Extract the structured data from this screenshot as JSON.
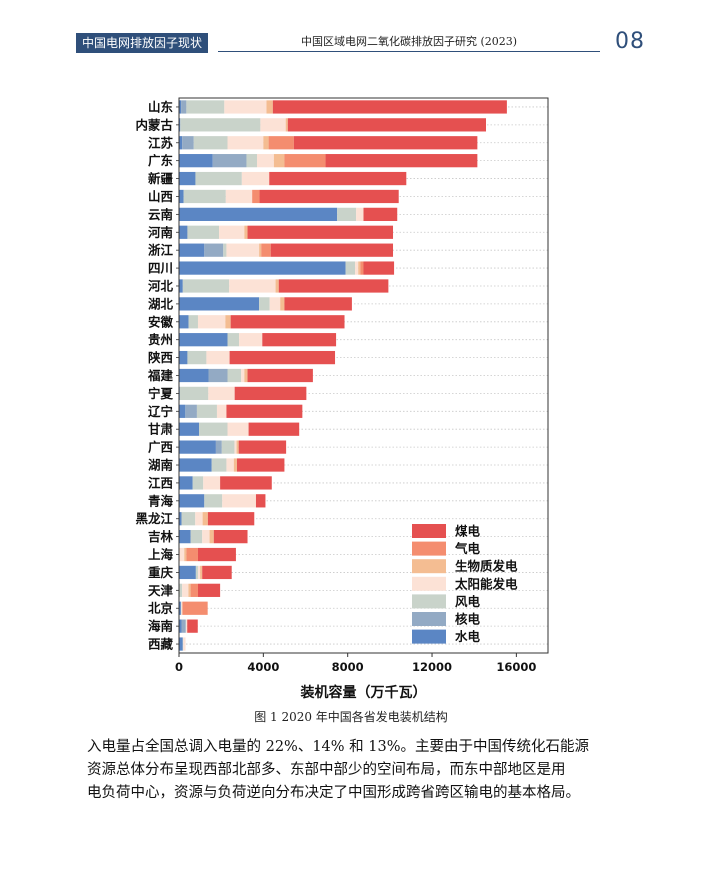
{
  "header": {
    "section_tag": "中国电网排放因子现状",
    "report_title": "中国区域电网二氧化碳排放因子研究 (2023)",
    "page_number": "08"
  },
  "figure": {
    "caption": "图 1 2020 年中国各省发电装机结构"
  },
  "body_text": {
    "lines": [
      "入电量占全国总调入电量的 22%、14% 和 13%。主要由于中国传统化石能源",
      "资源总体分布呈现西部北部多、东部中部少的空间布局，而东中部地区是用",
      "电负荷中心，资源与负荷逆向分布决定了中国形成跨省跨区输电的基本格局。"
    ]
  },
  "chart_data": {
    "type": "bar",
    "orientation": "horizontal",
    "stacked": true,
    "xlabel": "装机容量（万千瓦）",
    "ylabel": "",
    "title": "",
    "xlim": [
      0,
      17500
    ],
    "xticks": [
      0,
      4000,
      8000,
      12000,
      16000
    ],
    "xtick_labels": [
      "0",
      "4000",
      "8000",
      "12000",
      "16000"
    ],
    "grid": "horizontal dotted",
    "legend_position": "bottom-right",
    "categories": [
      "山东",
      "内蒙古",
      "江苏",
      "广东",
      "新疆",
      "山西",
      "云南",
      "河南",
      "浙江",
      "四川",
      "河北",
      "湖北",
      "安徽",
      "贵州",
      "陕西",
      "福建",
      "宁夏",
      "辽宁",
      "甘肃",
      "广西",
      "湖南",
      "江西",
      "青海",
      "黑龙江",
      "吉林",
      "上海",
      "重庆",
      "天津",
      "北京",
      "海南",
      "西藏"
    ],
    "series": [
      {
        "name": "水电",
        "color": "#5b86c4",
        "values": [
          100,
          60,
          150,
          1600,
          780,
          220,
          7500,
          400,
          1200,
          7900,
          180,
          3800,
          450,
          2300,
          400,
          1400,
          40,
          300,
          950,
          1750,
          1550,
          650,
          1200,
          120,
          550,
          0,
          800,
          0,
          90,
          120,
          180
        ]
      },
      {
        "name": "核电",
        "color": "#93aac4",
        "values": [
          250,
          0,
          550,
          1600,
          0,
          0,
          0,
          0,
          900,
          0,
          0,
          0,
          0,
          0,
          0,
          900,
          0,
          550,
          0,
          280,
          0,
          0,
          0,
          0,
          0,
          0,
          0,
          0,
          0,
          200,
          0
        ]
      },
      {
        "name": "风电",
        "color": "#c9d3ca",
        "values": [
          1800,
          3800,
          1600,
          500,
          2200,
          2000,
          900,
          1500,
          150,
          450,
          2200,
          500,
          450,
          550,
          900,
          650,
          1350,
          950,
          1350,
          600,
          700,
          500,
          850,
          650,
          550,
          0,
          100,
          150,
          20,
          20,
          20
        ]
      },
      {
        "name": "太阳能发电",
        "color": "#fce2d6",
        "values": [
          2000,
          1200,
          1700,
          800,
          1300,
          1250,
          350,
          1200,
          1550,
          150,
          2200,
          500,
          1300,
          1100,
          1100,
          150,
          1250,
          450,
          1000,
          100,
          350,
          800,
          1600,
          350,
          350,
          250,
          100,
          300,
          50,
          50,
          110
        ]
      },
      {
        "name": "生物质发电",
        "color": "#f4bd92",
        "values": [
          300,
          100,
          250,
          500,
          0,
          0,
          0,
          150,
          100,
          100,
          150,
          200,
          250,
          0,
          0,
          150,
          0,
          0,
          0,
          100,
          150,
          0,
          0,
          250,
          200,
          100,
          100,
          100,
          0,
          0,
          0
        ]
      },
      {
        "name": "气电",
        "color": "#f48d6f",
        "values": [
          0,
          0,
          1200,
          1950,
          0,
          350,
          0,
          0,
          450,
          150,
          0,
          0,
          0,
          0,
          0,
          0,
          0,
          0,
          0,
          0,
          0,
          0,
          0,
          0,
          0,
          550,
          0,
          350,
          1200,
          0,
          0
        ]
      },
      {
        "name": "煤电",
        "color": "#e55050",
        "values": [
          11100,
          9400,
          8700,
          7200,
          6500,
          6600,
          1600,
          6900,
          5800,
          1450,
          5200,
          3200,
          5400,
          3500,
          5000,
          3100,
          3400,
          3600,
          2400,
          2250,
          2250,
          2450,
          450,
          2200,
          1600,
          1800,
          1400,
          1050,
          0,
          500,
          0
        ]
      }
    ]
  }
}
